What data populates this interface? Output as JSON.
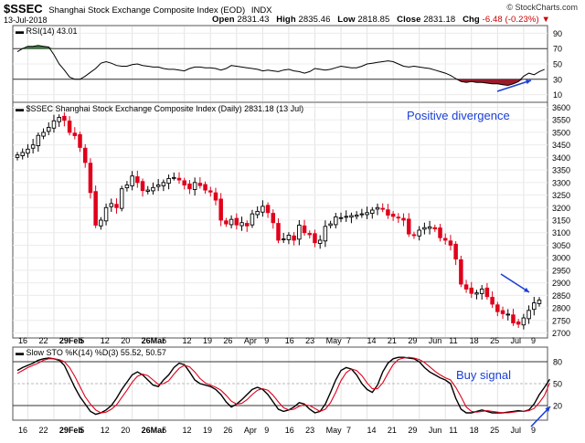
{
  "header": {
    "symbol": "$SSEC",
    "full_name": "Shanghai Stock Exchange Composite Index (EOD)",
    "market": "INDX",
    "date": "13-Jul-2018",
    "brand": "© StockCharts.com",
    "open_label": "Open",
    "open": "2831.43",
    "high_label": "High",
    "high": "2835.46",
    "low_label": "Low",
    "low": "2818.85",
    "close_label": "Close",
    "close": "2831.18",
    "chg_label": "Chg",
    "chg": "-6.48 (-0.23%)",
    "chg_arrow": "▼"
  },
  "colors": {
    "up_candle": "#000000",
    "down_candle": "#e0001b",
    "k_line": "#000000",
    "d_line": "#e0001b",
    "rsi_over": "#3e7d3e",
    "rsi_under": "#9b1a2a",
    "annotation": "#1a3fd6"
  },
  "chart_data": [
    {
      "type": "line",
      "panel": "RSI",
      "legend": "RSI(14) 43.01",
      "y_ticks": [
        "90",
        "70",
        "50",
        "30",
        "10"
      ],
      "ylim": [
        0,
        100
      ],
      "reference_lines": [
        70,
        30
      ],
      "values": [
        66,
        70,
        73,
        73,
        74,
        73,
        72,
        62,
        50,
        42,
        33,
        30,
        30,
        34,
        39,
        44,
        51,
        53,
        51,
        48,
        47,
        47,
        49,
        50,
        48,
        47,
        46,
        46,
        44,
        43,
        43,
        42,
        41,
        44,
        46,
        46,
        45,
        45,
        44,
        42,
        44,
        48,
        47,
        46,
        45,
        44,
        43,
        41,
        42,
        41,
        40,
        42,
        43,
        41,
        40,
        38,
        40,
        44,
        43,
        42,
        43,
        45,
        47,
        46,
        45,
        45,
        47,
        50,
        51,
        52,
        53,
        54,
        53,
        50,
        47,
        46,
        47,
        46,
        45,
        44,
        42,
        40,
        38,
        35,
        31,
        27,
        26,
        27,
        26,
        26,
        25,
        24,
        24,
        23,
        22,
        24,
        27,
        34,
        38,
        36,
        40,
        43
      ]
    },
    {
      "type": "candlestick",
      "panel": "Price",
      "legend": "$SSEC Shanghai Stock Exchange Composite Index (Daily) 2831.18 (13 Jul)",
      "y_ticks": [
        "3600",
        "3550",
        "3500",
        "3450",
        "3400",
        "3350",
        "3300",
        "3250",
        "3200",
        "3150",
        "3100",
        "3050",
        "3000",
        "2950",
        "2900",
        "2850",
        "2800",
        "2750",
        "2700"
      ],
      "ylim": [
        2680,
        3620
      ],
      "x_tick_labels": [
        "16",
        "22",
        "29Feb",
        "5",
        "12",
        "20",
        "26Mar",
        "5",
        "12",
        "19",
        "26",
        "Apr",
        "9",
        "16",
        "23",
        "May",
        "7",
        "14",
        "21",
        "29",
        "Jun",
        "11",
        "18",
        "25",
        "Jul",
        "9"
      ],
      "annotation": "Positive divergence",
      "close": [
        3410,
        3420,
        3433,
        3450,
        3488,
        3500,
        3520,
        3546,
        3560,
        3548,
        3500,
        3487,
        3440,
        3380,
        3260,
        3130,
        3150,
        3200,
        3216,
        3200,
        3275,
        3290,
        3326,
        3300,
        3268,
        3270,
        3280,
        3290,
        3300,
        3316,
        3320,
        3310,
        3290,
        3275,
        3300,
        3288,
        3270,
        3262,
        3230,
        3150,
        3135,
        3153,
        3131,
        3140,
        3127,
        3175,
        3185,
        3205,
        3180,
        3140,
        3070,
        3075,
        3090,
        3070,
        3130,
        3100,
        3092,
        3060,
        3070,
        3125,
        3135,
        3163,
        3160,
        3165,
        3168,
        3170,
        3175,
        3180,
        3190,
        3200,
        3194,
        3170,
        3165,
        3160,
        3150,
        3095,
        3090,
        3110,
        3120,
        3123,
        3115,
        3080,
        3070,
        3050,
        2995,
        2895,
        2875,
        2858,
        2860,
        2875,
        2845,
        2815,
        2785,
        2777,
        2775,
        2740,
        2735,
        2760,
        2790,
        2820,
        2831
      ]
    },
    {
      "type": "line",
      "panel": "Slow STO",
      "legend": "Slow STO %K(14) %D(3) 55.52, 50.57",
      "y_ticks": [
        "80",
        "50",
        "20"
      ],
      "ylim": [
        0,
        100
      ],
      "reference_lines": [
        80,
        20
      ],
      "annotation": "Buy signal",
      "series": [
        {
          "name": "%K",
          "values": [
            68,
            72,
            75,
            78,
            82,
            84,
            85,
            84,
            82,
            75,
            60,
            45,
            32,
            22,
            12,
            8,
            10,
            14,
            20,
            30,
            42,
            52,
            62,
            66,
            62,
            55,
            48,
            46,
            55,
            62,
            72,
            78,
            76,
            66,
            55,
            50,
            48,
            46,
            42,
            35,
            25,
            18,
            22,
            28,
            35,
            42,
            45,
            42,
            35,
            25,
            15,
            12,
            14,
            18,
            24,
            22,
            15,
            10,
            12,
            22,
            38,
            55,
            68,
            72,
            70,
            62,
            50,
            42,
            38,
            48,
            66,
            78,
            84,
            86,
            86,
            85,
            84,
            80,
            72,
            66,
            62,
            58,
            55,
            50,
            30,
            15,
            10,
            10,
            12,
            14,
            12,
            10,
            10,
            10,
            11,
            12,
            13,
            12,
            14,
            22,
            35,
            45,
            56
          ]
        },
        {
          "name": "%D",
          "values": [
            64,
            68,
            72,
            75,
            78,
            82,
            84,
            84,
            83,
            80,
            72,
            60,
            46,
            32,
            22,
            14,
            10,
            11,
            15,
            21,
            31,
            41,
            52,
            60,
            63,
            61,
            55,
            49,
            50,
            54,
            63,
            71,
            75,
            73,
            66,
            57,
            51,
            48,
            45,
            41,
            34,
            26,
            22,
            23,
            28,
            35,
            41,
            43,
            41,
            34,
            25,
            17,
            14,
            15,
            19,
            21,
            20,
            16,
            12,
            15,
            24,
            38,
            54,
            65,
            70,
            68,
            61,
            51,
            43,
            43,
            51,
            64,
            76,
            83,
            85,
            86,
            85,
            83,
            79,
            73,
            67,
            62,
            58,
            55,
            45,
            32,
            18,
            12,
            11,
            12,
            13,
            12,
            11,
            10,
            10,
            11,
            12,
            12,
            13,
            16,
            24,
            34,
            51
          ]
        }
      ]
    }
  ]
}
